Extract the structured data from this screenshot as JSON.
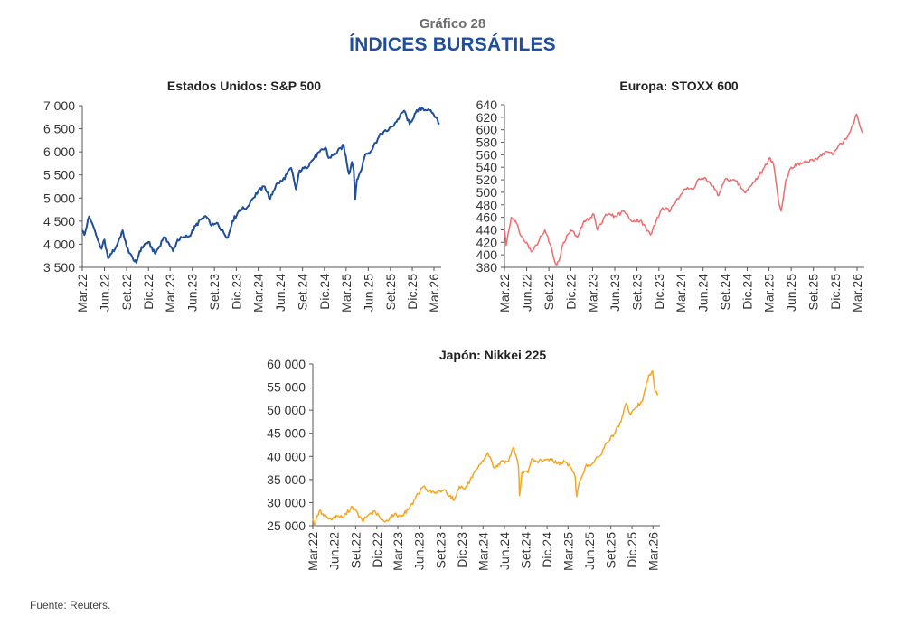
{
  "header": {
    "kicker": "Gráfico 28",
    "title": "ÍNDICES BURSÁTILES"
  },
  "footer": {
    "source": "Fuente: Reuters."
  },
  "chart_data": [
    {
      "id": "sp500",
      "type": "line",
      "title": "Estados Unidos: S&P 500",
      "color": "#1f4e9a",
      "ylim": [
        3500,
        7000
      ],
      "yticks": [
        3500,
        4000,
        4500,
        5000,
        5500,
        6000,
        6500,
        7000
      ],
      "ytick_labels": [
        "3 500",
        "4 000",
        "4 500",
        "5 000",
        "5 500",
        "6 000",
        "6 500",
        "7 000"
      ],
      "xlim": [
        "2022-03-01",
        "2026-03-31"
      ],
      "xticks": [
        "2022-03-01",
        "2022-06-01",
        "2022-09-01",
        "2022-12-01",
        "2023-03-01",
        "2023-06-01",
        "2023-09-01",
        "2023-12-01",
        "2024-03-01",
        "2024-06-01",
        "2024-09-01",
        "2024-12-01",
        "2025-03-01",
        "2025-06-01",
        "2025-09-01",
        "2025-12-01",
        "2026-03-01"
      ],
      "xtick_labels": [
        "Mar.22",
        "Jun.22",
        "Set.22",
        "Dic.22",
        "Mar.23",
        "Jun.23",
        "Set.23",
        "Dic.23",
        "Mar.24",
        "Jun.24",
        "Set.24",
        "Dic.24",
        "Mar.25",
        "Jun.25",
        "Set.25",
        "Dic.25",
        "Mar.26"
      ],
      "grid": false,
      "legend": "none",
      "x": [
        "2022-03-01",
        "2022-03-10",
        "2022-03-29",
        "2022-04-15",
        "2022-05-01",
        "2022-05-20",
        "2022-06-01",
        "2022-06-16",
        "2022-07-01",
        "2022-07-20",
        "2022-08-16",
        "2022-09-01",
        "2022-09-30",
        "2022-10-12",
        "2022-10-25",
        "2022-11-15",
        "2022-12-01",
        "2022-12-28",
        "2023-01-15",
        "2023-02-02",
        "2023-02-20",
        "2023-03-13",
        "2023-04-01",
        "2023-04-28",
        "2023-05-20",
        "2023-06-15",
        "2023-07-10",
        "2023-07-31",
        "2023-08-20",
        "2023-09-15",
        "2023-10-01",
        "2023-10-27",
        "2023-11-15",
        "2023-12-15",
        "2024-01-15",
        "2024-02-01",
        "2024-03-01",
        "2024-03-28",
        "2024-04-19",
        "2024-05-15",
        "2024-06-10",
        "2024-07-16",
        "2024-08-05",
        "2024-08-20",
        "2024-09-15",
        "2024-10-01",
        "2024-10-20",
        "2024-11-11",
        "2024-12-06",
        "2024-12-18",
        "2025-01-15",
        "2025-02-19",
        "2025-03-13",
        "2025-03-25",
        "2025-04-02",
        "2025-04-08",
        "2025-04-15",
        "2025-05-01",
        "2025-05-20",
        "2025-06-10",
        "2025-07-01",
        "2025-07-25",
        "2025-08-15",
        "2025-09-10",
        "2025-10-01",
        "2025-10-28",
        "2025-11-20",
        "2025-12-15",
        "2026-01-10",
        "2026-02-01",
        "2026-02-20",
        "2026-03-10",
        "2026-03-24"
      ],
      "values": [
        4300,
        4200,
        4600,
        4400,
        4150,
        3900,
        4100,
        3700,
        3800,
        3950,
        4300,
        3950,
        3650,
        3600,
        3850,
        4000,
        4050,
        3800,
        3950,
        4150,
        4050,
        3850,
        4100,
        4150,
        4180,
        4400,
        4550,
        4580,
        4400,
        4450,
        4300,
        4150,
        4500,
        4750,
        4800,
        4950,
        5150,
        5250,
        4980,
        5300,
        5380,
        5650,
        5190,
        5600,
        5650,
        5750,
        5870,
        6000,
        6090,
        5870,
        5950,
        6140,
        5520,
        5780,
        5600,
        4980,
        5400,
        5580,
        5950,
        6000,
        6200,
        6390,
        6450,
        6550,
        6700,
        6890,
        6600,
        6850,
        6950,
        6900,
        6850,
        6750,
        6600
      ]
    },
    {
      "id": "stoxx600",
      "type": "line",
      "title": "Europa: STOXX 600",
      "color": "#ef6b6e",
      "ylim": [
        380,
        640
      ],
      "yticks": [
        380,
        400,
        420,
        440,
        460,
        480,
        500,
        520,
        540,
        560,
        580,
        600,
        620,
        640
      ],
      "ytick_labels": [
        "380",
        "400",
        "420",
        "440",
        "460",
        "480",
        "500",
        "520",
        "540",
        "560",
        "580",
        "600",
        "620",
        "640"
      ],
      "xlim": [
        "2022-03-01",
        "2026-03-31"
      ],
      "xticks": [
        "2022-03-01",
        "2022-06-01",
        "2022-09-01",
        "2022-12-01",
        "2023-03-01",
        "2023-06-01",
        "2023-09-01",
        "2023-12-01",
        "2024-03-01",
        "2024-06-01",
        "2024-09-01",
        "2024-12-01",
        "2025-03-01",
        "2025-06-01",
        "2025-09-01",
        "2025-12-01",
        "2026-03-01"
      ],
      "xtick_labels": [
        "Mar.22",
        "Jun.22",
        "Set.22",
        "Dic.22",
        "Mar.23",
        "Jun.23",
        "Set.23",
        "Dic.23",
        "Mar.24",
        "Jun.24",
        "Set.24",
        "Dic.24",
        "Mar.25",
        "Jun.25",
        "Set.25",
        "Dic.25",
        "Mar.26"
      ],
      "grid": false,
      "legend": "none",
      "x": [
        "2022-03-01",
        "2022-03-08",
        "2022-03-29",
        "2022-04-15",
        "2022-05-10",
        "2022-06-01",
        "2022-06-20",
        "2022-07-01",
        "2022-08-15",
        "2022-09-05",
        "2022-09-29",
        "2022-10-12",
        "2022-11-01",
        "2022-12-01",
        "2022-12-28",
        "2023-01-20",
        "2023-03-06",
        "2023-03-20",
        "2023-04-25",
        "2023-06-01",
        "2023-07-10",
        "2023-07-31",
        "2023-08-20",
        "2023-09-15",
        "2023-10-27",
        "2023-11-20",
        "2023-12-15",
        "2024-01-17",
        "2024-02-15",
        "2024-03-15",
        "2024-04-19",
        "2024-05-15",
        "2024-06-15",
        "2024-07-10",
        "2024-08-05",
        "2024-08-30",
        "2024-09-20",
        "2024-10-15",
        "2024-11-20",
        "2024-12-15",
        "2025-01-15",
        "2025-02-10",
        "2025-03-03",
        "2025-03-20",
        "2025-04-08",
        "2025-04-20",
        "2025-05-10",
        "2025-06-01",
        "2025-07-01",
        "2025-08-01",
        "2025-09-01",
        "2025-10-01",
        "2025-10-28",
        "2025-11-20",
        "2025-12-15",
        "2026-01-15",
        "2026-02-15",
        "2026-02-27",
        "2026-03-10",
        "2026-03-24"
      ],
      "values": [
        440,
        415,
        460,
        455,
        430,
        420,
        405,
        410,
        440,
        418,
        385,
        390,
        420,
        440,
        428,
        450,
        465,
        440,
        465,
        462,
        470,
        458,
        455,
        455,
        432,
        455,
        475,
        470,
        490,
        505,
        505,
        522,
        520,
        510,
        495,
        520,
        520,
        518,
        500,
        510,
        525,
        540,
        555,
        545,
        490,
        470,
        520,
        540,
        545,
        548,
        550,
        560,
        565,
        560,
        575,
        585,
        610,
        625,
        610,
        595
      ]
    },
    {
      "id": "nikkei225",
      "type": "line",
      "title": "Japón: Nikkei 225",
      "color": "#f5a623",
      "ylim": [
        25000,
        60000
      ],
      "yticks": [
        25000,
        30000,
        35000,
        40000,
        45000,
        50000,
        55000,
        60000
      ],
      "ytick_labels": [
        "25 000",
        "30 000",
        "35 000",
        "40 000",
        "45 000",
        "50 000",
        "55 000",
        "60 000"
      ],
      "xlim": [
        "2022-03-01",
        "2026-03-31"
      ],
      "xticks": [
        "2022-03-01",
        "2022-06-01",
        "2022-09-01",
        "2022-12-01",
        "2023-03-01",
        "2023-06-01",
        "2023-09-01",
        "2023-12-01",
        "2024-03-01",
        "2024-06-01",
        "2024-09-01",
        "2024-12-01",
        "2025-03-01",
        "2025-06-01",
        "2025-09-01",
        "2025-12-01",
        "2026-03-01"
      ],
      "xtick_labels": [
        "Mar.22",
        "Jun.22",
        "Set.22",
        "Dic.22",
        "Mar.23",
        "Jun.23",
        "Set.23",
        "Dic.23",
        "Mar.24",
        "Jun.24",
        "Set.24",
        "Dic.24",
        "Mar.25",
        "Jun.25",
        "Set.25",
        "Dic.25",
        "Mar.26"
      ],
      "grid": false,
      "legend": "none",
      "x": [
        "2022-03-01",
        "2022-03-08",
        "2022-03-29",
        "2022-05-12",
        "2022-06-15",
        "2022-07-10",
        "2022-08-17",
        "2022-09-30",
        "2022-10-30",
        "2022-11-25",
        "2022-12-20",
        "2023-01-04",
        "2023-02-15",
        "2023-03-15",
        "2023-04-15",
        "2023-05-15",
        "2023-06-19",
        "2023-07-15",
        "2023-08-15",
        "2023-09-15",
        "2023-10-30",
        "2023-11-20",
        "2023-12-15",
        "2024-01-15",
        "2024-02-22",
        "2024-03-21",
        "2024-04-19",
        "2024-05-15",
        "2024-06-15",
        "2024-07-11",
        "2024-07-31",
        "2024-08-05",
        "2024-08-15",
        "2024-09-10",
        "2024-09-27",
        "2024-10-15",
        "2024-11-15",
        "2024-12-15",
        "2025-01-15",
        "2025-02-15",
        "2025-03-15",
        "2025-04-01",
        "2025-04-07",
        "2025-04-20",
        "2025-05-15",
        "2025-06-15",
        "2025-07-15",
        "2025-08-15",
        "2025-09-15",
        "2025-10-15",
        "2025-11-05",
        "2025-11-25",
        "2025-12-15",
        "2026-01-15",
        "2026-02-10",
        "2026-02-27",
        "2026-03-10",
        "2026-03-24"
      ],
      "values": [
        26500,
        25000,
        28200,
        26500,
        27000,
        26800,
        29200,
        26000,
        27500,
        28000,
        26300,
        25800,
        27500,
        27000,
        28500,
        30800,
        33500,
        32500,
        32000,
        32800,
        30600,
        33500,
        33000,
        35500,
        38500,
        40800,
        37500,
        38800,
        38900,
        42000,
        38000,
        31500,
        36500,
        36500,
        39500,
        39000,
        39000,
        39500,
        38500,
        38800,
        37500,
        35500,
        31300,
        34500,
        37800,
        38500,
        40000,
        43000,
        44800,
        47500,
        51500,
        49000,
        50500,
        52000,
        57500,
        58500,
        54000,
        53500
      ]
    }
  ]
}
